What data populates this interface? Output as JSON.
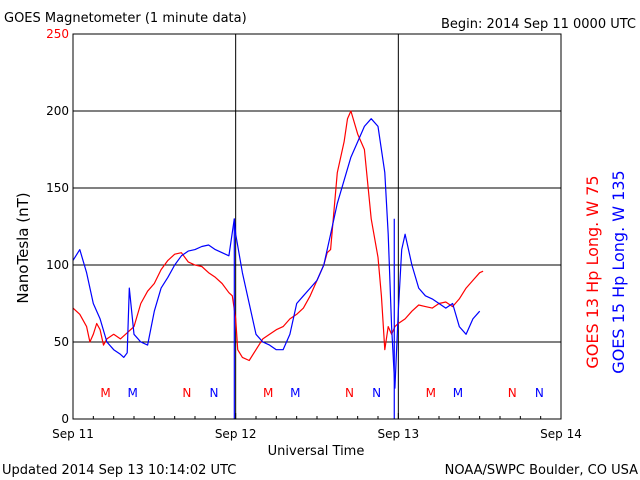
{
  "header": {
    "title": "GOES Magnetometer (1 minute data)",
    "begin": "Begin:  2014 Sep 11 0000 UTC"
  },
  "footer": {
    "updated": "Updated 2014 Sep 13 10:14:02 UTC",
    "credit": "NOAA/SWPC Boulder, CO USA"
  },
  "colors": {
    "goes13": "#ff0000",
    "goes15": "#0000ff",
    "axis": "#000000"
  },
  "chart_data": {
    "type": "line",
    "title": "GOES Magnetometer (1 minute data)",
    "xlabel": "Universal Time",
    "ylabel": "NanoTesla (nT)",
    "xlim": [
      0,
      72
    ],
    "ylim": [
      0,
      250
    ],
    "x_unit": "hours since 2014 Sep 11 0000 UTC",
    "x_ticks": [
      {
        "x": 0,
        "label": "Sep 11"
      },
      {
        "x": 24,
        "label": "Sep 12"
      },
      {
        "x": 48,
        "label": "Sep 13"
      },
      {
        "x": 72,
        "label": "Sep 14"
      }
    ],
    "y_ticks": [
      {
        "y": 0,
        "label": "0"
      },
      {
        "y": 50,
        "label": "50"
      },
      {
        "y": 100,
        "label": "100"
      },
      {
        "y": 150,
        "label": "150"
      },
      {
        "y": 200,
        "label": "200"
      },
      {
        "y": 250,
        "label": "250"
      }
    ],
    "vgrid": [
      24,
      48
    ],
    "hgrid": [
      50,
      100,
      150,
      200
    ],
    "extra_vlines": [
      23.8,
      47.4
    ],
    "mn_markers": [
      {
        "x": 4.8,
        "label": "M",
        "series": "GOES 13"
      },
      {
        "x": 8.8,
        "label": "M",
        "series": "GOES 15"
      },
      {
        "x": 16.8,
        "label": "N",
        "series": "GOES 13"
      },
      {
        "x": 20.8,
        "label": "N",
        "series": "GOES 15"
      },
      {
        "x": 28.8,
        "label": "M",
        "series": "GOES 13"
      },
      {
        "x": 32.8,
        "label": "M",
        "series": "GOES 15"
      },
      {
        "x": 40.8,
        "label": "N",
        "series": "GOES 13"
      },
      {
        "x": 44.8,
        "label": "N",
        "series": "GOES 15"
      },
      {
        "x": 52.8,
        "label": "M",
        "series": "GOES 13"
      },
      {
        "x": 56.8,
        "label": "M",
        "series": "GOES 15"
      },
      {
        "x": 64.8,
        "label": "N",
        "series": "GOES 13"
      },
      {
        "x": 68.8,
        "label": "N",
        "series": "GOES 15"
      }
    ],
    "series": [
      {
        "name": "GOES 13 Hp  Long. W 75",
        "color": "#ff0000",
        "x": [
          0,
          1,
          2,
          2.5,
          3,
          3.5,
          4,
          4.5,
          5,
          6,
          7,
          8,
          9,
          10,
          11,
          12,
          13,
          14,
          15,
          16,
          17,
          18,
          19,
          20,
          21,
          22,
          23,
          23.5,
          24,
          24.3,
          25,
          26,
          27,
          28,
          29,
          30,
          31,
          32,
          33,
          34,
          35,
          36,
          37,
          37.5,
          38,
          39,
          40,
          40.5,
          41,
          42,
          43,
          44,
          45,
          45.5,
          46,
          46.5,
          47,
          47.5,
          48,
          49,
          50,
          51,
          52,
          53,
          54,
          55,
          56,
          57,
          58,
          59,
          60,
          60.5
        ],
        "y": [
          72,
          68,
          60,
          50,
          55,
          62,
          58,
          48,
          52,
          55,
          52,
          56,
          60,
          75,
          83,
          88,
          97,
          103,
          107,
          108,
          102,
          100,
          99,
          95,
          92,
          88,
          82,
          80,
          65,
          45,
          40,
          38,
          45,
          52,
          55,
          58,
          60,
          65,
          68,
          72,
          80,
          90,
          100,
          108,
          110,
          160,
          180,
          195,
          200,
          185,
          175,
          130,
          105,
          80,
          45,
          60,
          55,
          60,
          62,
          65,
          70,
          74,
          73,
          72,
          75,
          76,
          73,
          78,
          85,
          90,
          95,
          96
        ]
      },
      {
        "name": "GOES 15 Hp  Long. W 135",
        "color": "#0000ff",
        "x": [
          0,
          1,
          2,
          3,
          4,
          5,
          6,
          7,
          7.5,
          8,
          8.3,
          9,
          10,
          11,
          12,
          13,
          14,
          15,
          16,
          17,
          18,
          19,
          20,
          21,
          22,
          23,
          23.8,
          24,
          25,
          26,
          27,
          28,
          29,
          30,
          31,
          32,
          33,
          34,
          35,
          36,
          37,
          38,
          39,
          40,
          41,
          42,
          43,
          44,
          45,
          46,
          46.5,
          47,
          47.5,
          48,
          48.5,
          49,
          50,
          51,
          52,
          53,
          54,
          55,
          56,
          57,
          58,
          59,
          60
        ],
        "y": [
          103,
          110,
          95,
          75,
          65,
          50,
          45,
          42,
          40,
          43,
          85,
          55,
          50,
          48,
          70,
          85,
          92,
          100,
          106,
          109,
          110,
          112,
          113,
          110,
          108,
          106,
          130,
          120,
          95,
          75,
          55,
          50,
          48,
          45,
          45,
          55,
          75,
          80,
          85,
          90,
          100,
          120,
          140,
          155,
          170,
          180,
          190,
          195,
          190,
          160,
          120,
          60,
          20,
          70,
          110,
          120,
          100,
          85,
          80,
          78,
          75,
          72,
          75,
          60,
          55,
          65,
          70
        ]
      }
    ]
  }
}
